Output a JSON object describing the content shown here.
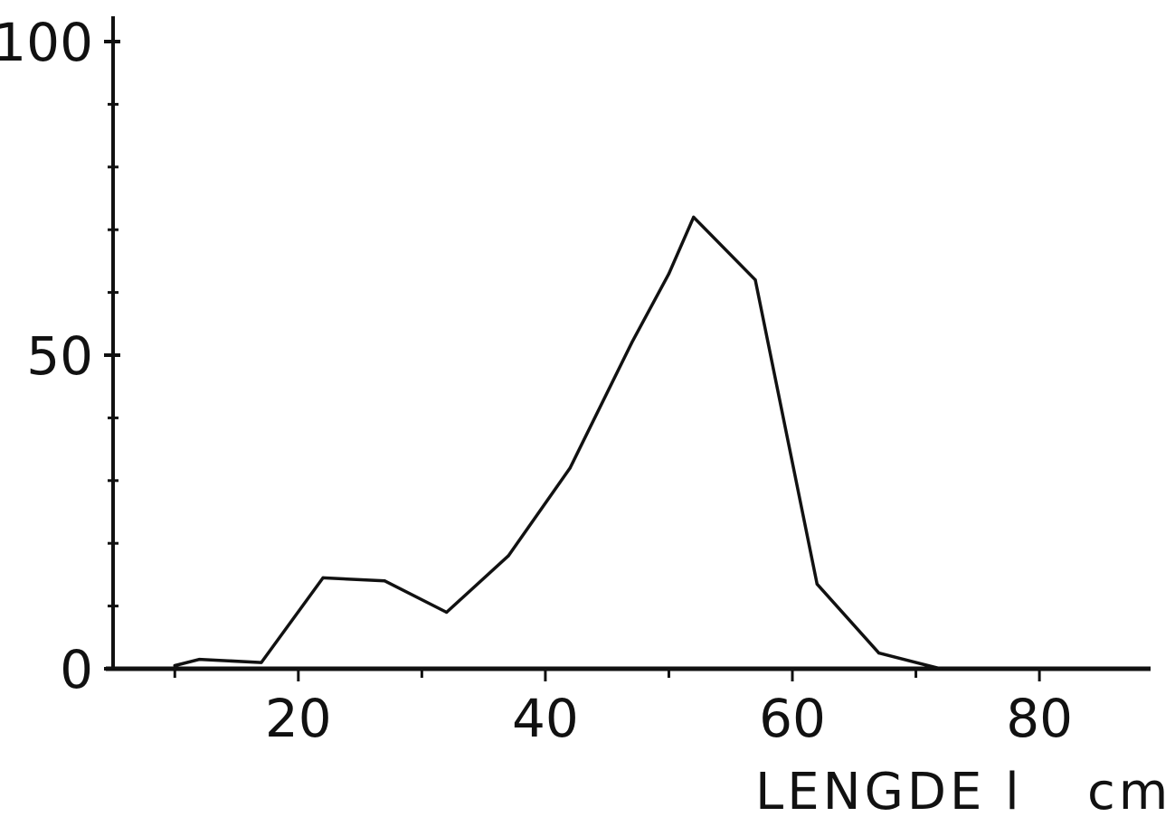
{
  "chart_data": {
    "type": "line",
    "title": "",
    "xlabel": "LENGDE l",
    "xunit": "cm",
    "ylabel": "",
    "xlim": [
      5,
      89
    ],
    "ylim": [
      0,
      100
    ],
    "x_ticks": [
      20,
      40,
      60,
      80
    ],
    "x_minor_ticks": [
      10,
      30,
      50,
      70
    ],
    "y_ticks": [
      0,
      50,
      100
    ],
    "y_minor_ticks": [
      10,
      20,
      30,
      40,
      60,
      70,
      80,
      90
    ],
    "grid": false,
    "legend": "none",
    "series": [
      {
        "x": [
          10,
          12,
          17,
          22,
          27,
          32,
          37,
          42,
          47,
          50,
          52,
          57,
          62,
          67,
          72
        ],
        "y": [
          0.5,
          1.5,
          1,
          14.5,
          14,
          9,
          18,
          32,
          52,
          63,
          72,
          62,
          13.5,
          2.5,
          0
        ]
      }
    ]
  }
}
